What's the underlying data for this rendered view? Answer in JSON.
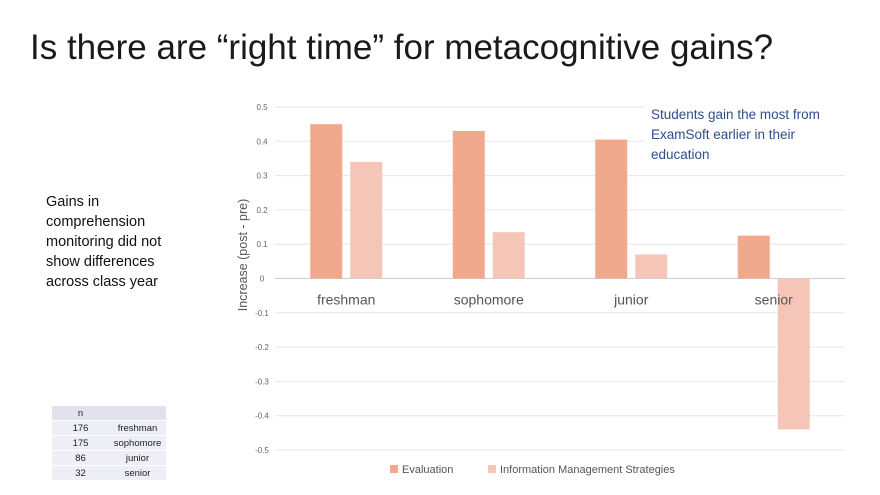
{
  "slide": {
    "title": "Is there are “right time” for metacognitive gains?",
    "side_note": "Gains in comprehension monitoring did not show differences across class year",
    "callout": "Students gain the most from ExamSoft earlier in their education"
  },
  "n_table": {
    "header": [
      "n",
      ""
    ],
    "rows": [
      [
        "176",
        "freshman"
      ],
      [
        "175",
        "sophomore"
      ],
      [
        "86",
        "junior"
      ],
      [
        "32",
        "senior"
      ]
    ]
  },
  "chart_data": {
    "type": "bar",
    "categories": [
      "freshman",
      "sophomore",
      "junior",
      "senior"
    ],
    "series": [
      {
        "name": "Evaluation",
        "values": [
          0.45,
          0.43,
          0.405,
          0.125
        ],
        "color": "#f0a98c"
      },
      {
        "name": "Information Management Strategies",
        "values": [
          0.34,
          0.135,
          0.07,
          -0.44
        ],
        "color": "#f5c6b8"
      }
    ],
    "ylabel": "Increase (post - pre)",
    "ylim": [
      -0.5,
      0.5
    ],
    "yticks": [
      "0.5",
      "0.4",
      "0.3",
      "0.2",
      "0.1",
      "0",
      "-0.1",
      "-0.2",
      "-0.3",
      "-0.4",
      "-0.5"
    ],
    "grid": true,
    "legend_position": "bottom"
  }
}
